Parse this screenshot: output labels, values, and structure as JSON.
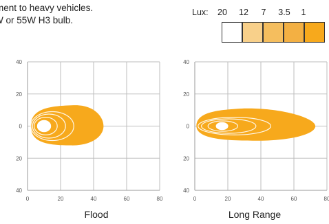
{
  "intro_lines": [
    "ment to heavy vehicles.",
    "W or 55W H3 bulb."
  ],
  "lux_legend": {
    "prefix": "Lux:",
    "values": [
      "20",
      "12",
      "7",
      "3.5",
      "1"
    ],
    "colors": [
      "#ffffff",
      "#f8d08a",
      "#f5be5e",
      "#f3b043",
      "#f7a91c"
    ]
  },
  "chart_data": [
    {
      "type": "contour",
      "title": "Flood",
      "xlim": [
        0,
        80
      ],
      "ylim": [
        -40,
        40
      ],
      "xticks": [
        "0",
        "20",
        "40",
        "60",
        "80"
      ],
      "yticks": [
        "40",
        "20",
        "0",
        "20",
        "40"
      ],
      "outer_extent": {
        "x_max": 46,
        "y_max": 13,
        "y_min": -12
      },
      "contours": [
        {
          "lux": "1",
          "x_min": 2,
          "x_max": 46
        },
        {
          "lux": "3.5",
          "x_min": 2,
          "x_max": 28
        },
        {
          "lux": "7",
          "x_min": 3,
          "x_max": 23
        },
        {
          "lux": "12",
          "x_min": 4,
          "x_max": 18
        },
        {
          "lux": "20",
          "x_min": 6,
          "x_max": 14
        }
      ]
    },
    {
      "type": "contour",
      "title": "Long Range",
      "xlim": [
        0,
        80
      ],
      "ylim": [
        -40,
        40
      ],
      "xticks": [
        "0",
        "20",
        "40",
        "60",
        "80"
      ],
      "yticks": [
        "40",
        "20",
        "0",
        "20",
        "40"
      ],
      "outer_extent": {
        "x_max": 73,
        "y_max": 11,
        "y_min": -9
      },
      "contours": [
        {
          "lux": "1",
          "x_min": 1,
          "x_max": 73
        },
        {
          "lux": "3.5",
          "x_min": 2,
          "x_max": 46
        },
        {
          "lux": "7",
          "x_min": 4,
          "x_max": 37
        },
        {
          "lux": "12",
          "x_min": 8,
          "x_max": 26
        },
        {
          "lux": "20",
          "x_min": 13,
          "x_max": 20
        }
      ]
    }
  ]
}
